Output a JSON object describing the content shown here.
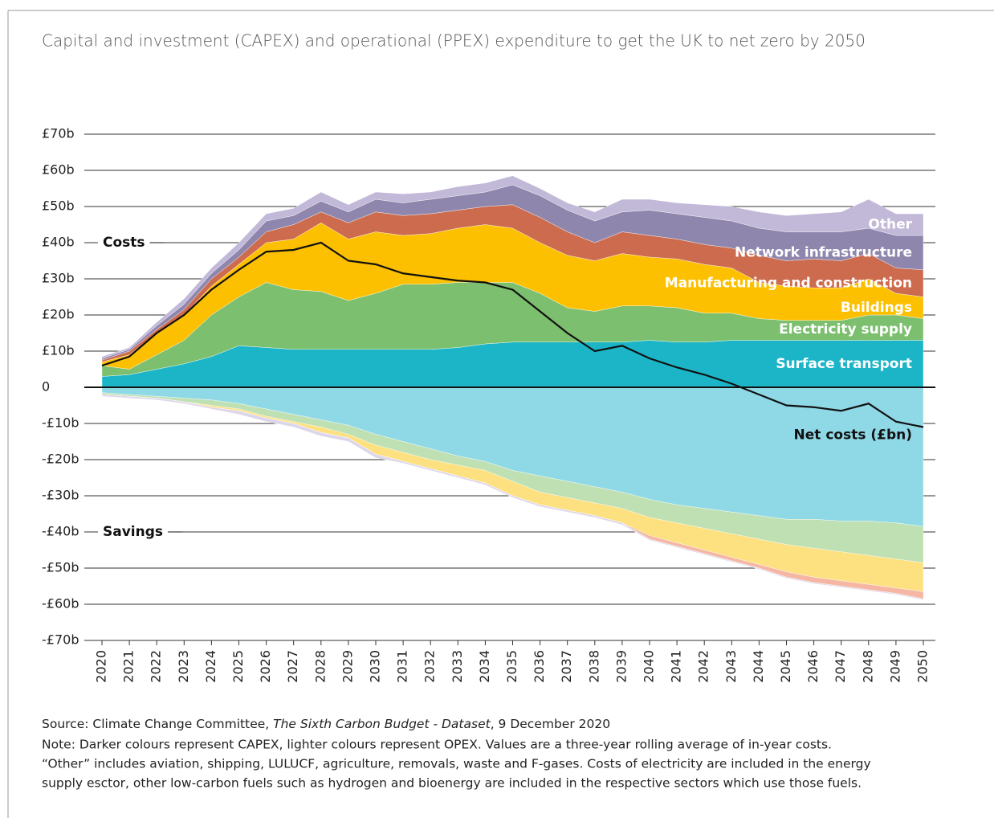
{
  "chart_data": {
    "type": "stacked_area",
    "title": "Capital and investment (CAPEX) and operational (PPEX) expenditure to get the UK to net zero by 2050",
    "categories": [
      "2020",
      "2021",
      "2022",
      "2023",
      "2024",
      "2025",
      "2026",
      "2027",
      "2028",
      "2029",
      "2030",
      "2031",
      "2032",
      "2033",
      "2034",
      "2035",
      "2036",
      "2037",
      "2038",
      "2039",
      "2040",
      "2041",
      "2042",
      "2043",
      "2044",
      "2045",
      "2046",
      "2047",
      "2048",
      "2049",
      "2050"
    ],
    "series": [
      {
        "name": "Surface transport",
        "color": "#1cb5c8",
        "values": [
          3,
          3.5,
          5,
          6.5,
          8.5,
          11.5,
          11,
          10.5,
          10.5,
          10.5,
          10.5,
          10.5,
          10.5,
          11,
          12,
          12.5,
          12.5,
          12.5,
          12.5,
          12.5,
          13,
          12.5,
          12.5,
          13,
          13,
          13,
          13,
          13,
          13,
          13,
          13
        ]
      },
      {
        "name": "Electricity supply",
        "color": "#7cbf6e",
        "values": [
          3,
          1.5,
          4,
          6.5,
          11.5,
          13.5,
          18,
          16.5,
          16,
          13.5,
          15.5,
          18,
          18,
          18,
          17,
          16.5,
          13.5,
          9.5,
          8.5,
          10,
          9.5,
          9.5,
          8,
          7.5,
          6,
          5.5,
          5.5,
          5.5,
          7,
          7,
          6
        ]
      },
      {
        "name": "Buildings",
        "color": "#fcc000",
        "values": [
          1,
          4,
          6,
          7,
          8,
          9,
          11,
          14,
          19,
          17,
          17,
          13.5,
          14,
          15,
          16,
          15,
          14,
          14.5,
          14,
          14.5,
          13.5,
          13.5,
          13.5,
          12.5,
          10,
          9.5,
          9,
          9,
          10,
          6,
          6
        ]
      },
      {
        "name": "Manufacturing and construction",
        "color": "#cd6b4e",
        "values": [
          0.5,
          1,
          1,
          1.5,
          2,
          2,
          3,
          4,
          3,
          4.5,
          5.5,
          5.5,
          5.5,
          5,
          5,
          6.5,
          7,
          6.5,
          5,
          6,
          6,
          5.5,
          5.5,
          5.5,
          7.5,
          7,
          8,
          7.5,
          7,
          7,
          7.5
        ]
      },
      {
        "name": "Network infrastructure",
        "color": "#8e86ad",
        "values": [
          0.5,
          0.5,
          1,
          1.5,
          1.5,
          2,
          3,
          2.5,
          3,
          3,
          3.5,
          3.5,
          4,
          4,
          4,
          5.5,
          6,
          6,
          6,
          5.5,
          7,
          7,
          7.5,
          7.5,
          7.5,
          8,
          7.5,
          8,
          7,
          9,
          9.5
        ]
      },
      {
        "name": "Other",
        "color": "#c2b8d8",
        "values": [
          0.5,
          0.5,
          1,
          1.5,
          1.5,
          2,
          2,
          2,
          2.5,
          2,
          2,
          2.5,
          2,
          2.5,
          2.5,
          2.5,
          2,
          2,
          2.5,
          3.5,
          3,
          3,
          3.5,
          4,
          4.5,
          4.5,
          5,
          5.5,
          8,
          6,
          6
        ]
      }
    ],
    "savings_series": [
      {
        "color": "#8fd9e6",
        "values": [
          -1.5,
          -2,
          -2.5,
          -3,
          -3.5,
          -4.5,
          -6,
          -7.5,
          -9,
          -10.5,
          -13,
          -15,
          -17,
          -19,
          -20.5,
          -23,
          -24.5,
          -26,
          -27.5,
          -29,
          -31,
          -32.5,
          -33.5,
          -34.5,
          -35.5,
          -36.5,
          -36.5,
          -37,
          -37,
          -37.5,
          -38.5
        ]
      },
      {
        "color": "#bfe0b3",
        "values": [
          -0.5,
          -0.5,
          -0.5,
          -1,
          -1.5,
          -1.5,
          -2,
          -2,
          -2,
          -2.5,
          -3,
          -3,
          -3,
          -2.5,
          -2.5,
          -3,
          -4.5,
          -4.5,
          -4.5,
          -4.5,
          -5,
          -5,
          -5.5,
          -6,
          -6.5,
          -7,
          -8,
          -8.5,
          -9.5,
          -10,
          -10
        ]
      },
      {
        "color": "#fde080",
        "values": [
          0,
          0,
          0,
          0,
          -0.5,
          -0.5,
          -0.5,
          -0.5,
          -1.5,
          -1,
          -2.5,
          -2.5,
          -2.5,
          -3,
          -3.5,
          -4,
          -3.5,
          -3.5,
          -3.5,
          -4,
          -5,
          -5.5,
          -6,
          -6.5,
          -7,
          -7.5,
          -8,
          -8,
          -8,
          -8,
          -8
        ]
      },
      {
        "color": "#f5b7a3",
        "values": [
          0,
          0,
          0,
          0,
          0,
          0,
          0,
          0,
          0,
          0,
          0,
          0,
          0,
          0,
          0,
          0,
          0,
          0,
          0,
          0,
          -1,
          -1,
          -1,
          -1,
          -1,
          -1.5,
          -1.5,
          -1.5,
          -1.5,
          -1.5,
          -2
        ]
      },
      {
        "color": "#ddd6ea",
        "values": [
          -0.5,
          -0.5,
          -0.5,
          -0.5,
          -0.5,
          -1,
          -1,
          -1,
          -1,
          -1,
          -1,
          -0.5,
          -0.5,
          -0.5,
          -0.5,
          -0.5,
          -0.5,
          -0.5,
          -0.5,
          -0.5,
          -0.3,
          -0.3,
          -0.3,
          -0.3,
          -0.3,
          -0.3,
          -0.3,
          -0.3,
          -0.3,
          -0.3,
          -0.3
        ]
      }
    ],
    "net_line": {
      "name": "Net costs (£bn)",
      "color": "#111111",
      "values": [
        6,
        8.5,
        15,
        20,
        27,
        32.5,
        37.5,
        38,
        40,
        35,
        34,
        31.5,
        30.5,
        29.5,
        29,
        27,
        21,
        15,
        10,
        11.5,
        8,
        5.5,
        3.5,
        1,
        -2,
        -5,
        -5.5,
        -6.5,
        -4.5,
        -9.5,
        -11
      ]
    },
    "annotations": [
      "Costs",
      "Savings"
    ],
    "ylim": [
      -70,
      70
    ],
    "yticks": [
      {
        "value": -70,
        "label": "-£70b"
      },
      {
        "value": -60,
        "label": "-£60b"
      },
      {
        "value": -50,
        "label": "-£50b"
      },
      {
        "value": -40,
        "label": "-£40b"
      },
      {
        "value": -30,
        "label": "-£30b"
      },
      {
        "value": -20,
        "label": "-£20b"
      },
      {
        "value": -10,
        "label": "-£10b"
      },
      0,
      {
        "value": 10,
        "label": "£10b"
      },
      {
        "value": 20,
        "label": "£20b"
      },
      {
        "value": 30,
        "label": "£30b"
      },
      {
        "value": 40,
        "label": "£40b"
      },
      {
        "value": 50,
        "label": "£50b"
      },
      {
        "value": 60,
        "label": "£60b"
      },
      {
        "value": 70,
        "label": "£70b"
      }
    ],
    "grid": true,
    "source": [
      "Source: Climate Change Committee, ",
      "The Sixth Carbon Budget - Dataset",
      ", 9 December 2020"
    ],
    "notes": [
      "Note: Darker colours represent CAPEX, lighter colours represent OPEX. Values are a three-year rolling average of in-year costs.",
      "“Other” includes aviation, shipping, LULUCF, agriculture, removals, waste and F-gases. Costs of electricity are included in the energy",
      "supply esctor, other low-carbon fuels such as hydrogen and bioenergy are included in the respective sectors which use those fuels."
    ]
  }
}
